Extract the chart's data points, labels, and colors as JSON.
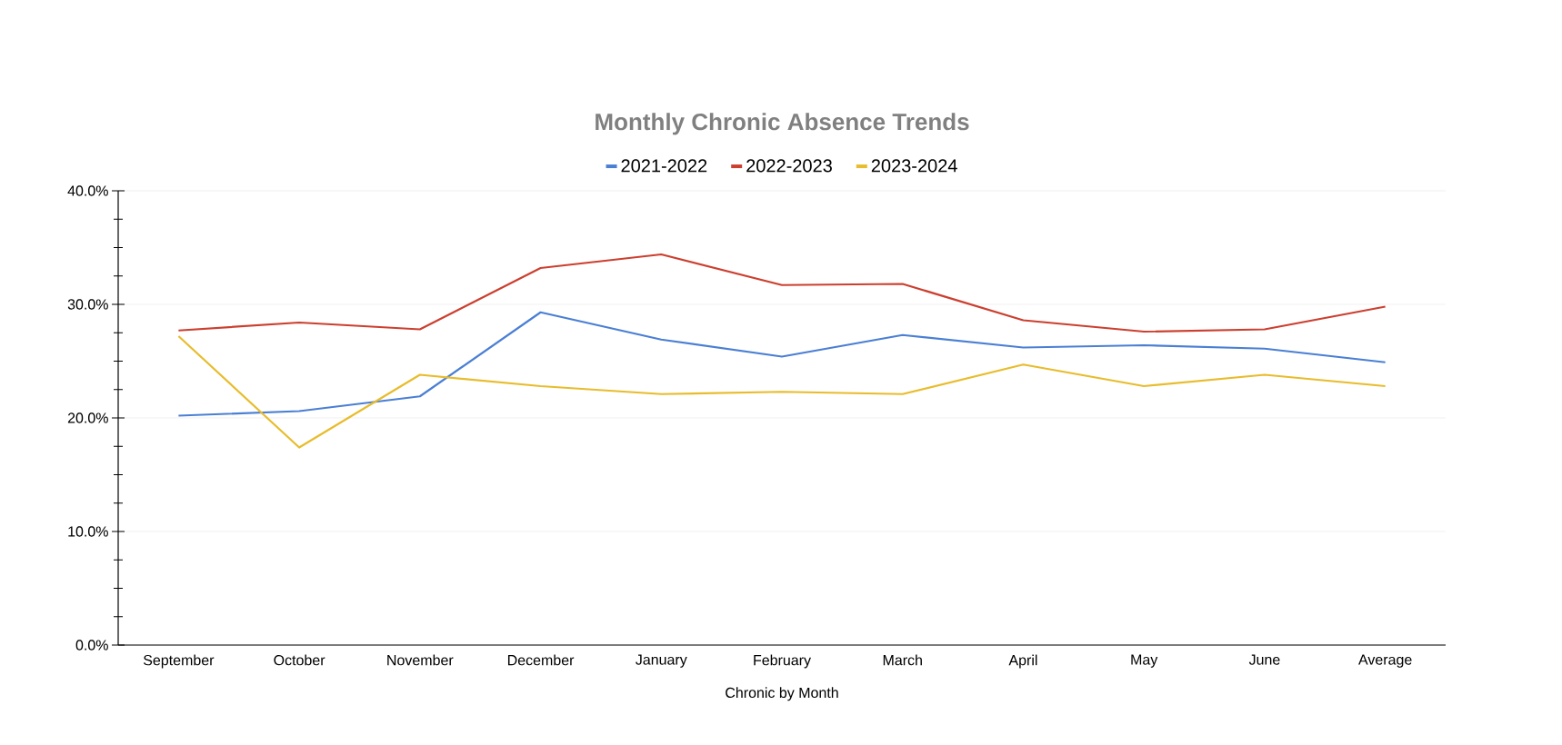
{
  "chart_data": {
    "type": "line",
    "title": "Monthly Chronic Absence Trends",
    "xlabel": "Chronic by Month",
    "categories": [
      "September",
      "October",
      "November",
      "December",
      "January",
      "February",
      "March",
      "April",
      "May",
      "June",
      "Average"
    ],
    "series": [
      {
        "name": "2021-2022",
        "color": "#4a7fd4",
        "values": [
          20.2,
          20.6,
          21.9,
          29.3,
          26.9,
          25.4,
          27.3,
          26.2,
          26.4,
          26.1,
          24.9
        ]
      },
      {
        "name": "2022-2023",
        "color": "#cc3f2f",
        "values": [
          27.7,
          28.4,
          27.8,
          33.2,
          34.4,
          31.7,
          31.8,
          28.6,
          27.6,
          27.8,
          29.8
        ]
      },
      {
        "name": "2023-2024",
        "color": "#e8bc2c",
        "values": [
          27.2,
          17.4,
          23.8,
          22.8,
          22.1,
          22.3,
          22.1,
          24.7,
          22.8,
          23.8,
          22.8
        ]
      }
    ],
    "ylim": [
      0,
      40
    ],
    "yticks": [
      {
        "value": 0,
        "label": "0.0%"
      },
      {
        "value": 2.5,
        "label": null
      },
      {
        "value": 5,
        "label": null
      },
      {
        "value": 7.5,
        "label": null
      },
      {
        "value": 10,
        "label": "10.0%"
      },
      {
        "value": 12.5,
        "label": null
      },
      {
        "value": 15,
        "label": null
      },
      {
        "value": 17.5,
        "label": null
      },
      {
        "value": 20,
        "label": "20.0%"
      },
      {
        "value": 22.5,
        "label": null
      },
      {
        "value": 25,
        "label": null
      },
      {
        "value": 27.5,
        "label": null
      },
      {
        "value": 30,
        "label": "30.0%"
      },
      {
        "value": 32.5,
        "label": null
      },
      {
        "value": 35,
        "label": null
      },
      {
        "value": 37.5,
        "label": null
      },
      {
        "value": 40,
        "label": "40.0%"
      }
    ],
    "grid": "y",
    "legend": "top",
    "marker": "none",
    "line_style": "solid"
  }
}
